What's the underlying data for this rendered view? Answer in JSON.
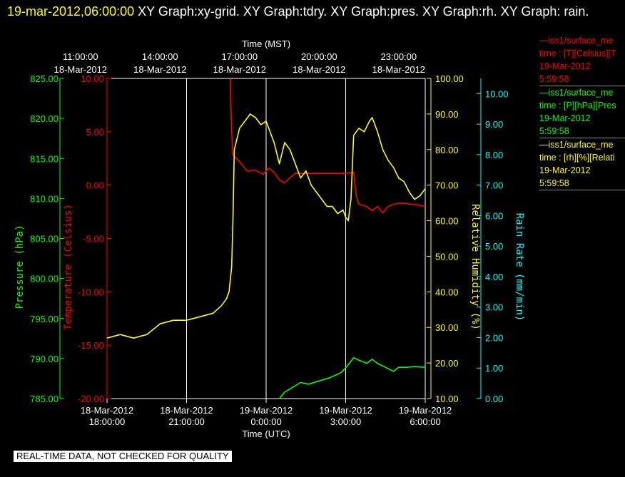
{
  "header": {
    "timestamp": "19-mar-2012,06:00:00",
    "title": "XY Graph:xy-grid.  XY Graph:tdry.  XY Graph:pres.  XY Graph:rh.  XY Graph: rain."
  },
  "legend": [
    {
      "line1": "—iss1/surface_me",
      "line2": "time : [T][Celsius][T",
      "line3": "19-Mar-2012",
      "line4": "5:59:58",
      "color": "#ff0000"
    },
    {
      "line1": "—iss1/surface_me",
      "line2": "time : [P][hPa][Pres",
      "line3": "19-Mar-2012",
      "line4": "5:59:58",
      "color": "#00ff00"
    },
    {
      "line1": "—iss1/surface_me",
      "line2": "time : [rh][%][Relati",
      "line3": "19-Mar-2012",
      "line4": "5:59:58",
      "color": "#ffff00"
    }
  ],
  "notice": "REAL-TIME DATA, NOT CHECKED FOR QUALITY",
  "chart_data": {
    "type": "line",
    "x_axis_bottom": {
      "label": "Time (UTC)",
      "ticks": [
        {
          "date": "18-Mar-2012",
          "time": "18:00:00"
        },
        {
          "date": "18-Mar-2012",
          "time": "21:00:00"
        },
        {
          "date": "19-Mar-2012",
          "time": "0:00:00"
        },
        {
          "date": "19-Mar-2012",
          "time": "3:00:00"
        },
        {
          "date": "19-Mar-2012",
          "time": "6:00:00"
        }
      ]
    },
    "x_axis_top": {
      "label": "Time (MST)",
      "ticks": [
        {
          "time": "11:00:00",
          "date": "18-Mar-2012"
        },
        {
          "time": "14:00:00",
          "date": "18-Mar-2012"
        },
        {
          "time": "17:00:00",
          "date": "18-Mar-2012"
        },
        {
          "time": "20:00:00",
          "date": "18-Mar-2012"
        },
        {
          "time": "23:00:00",
          "date": "18-Mar-2012"
        }
      ]
    },
    "xlim_hours_utc": [
      18,
      30
    ],
    "axes": {
      "pressure": {
        "label": "Pressure (hPa)",
        "color": "#00ff00",
        "ylim": [
          785,
          825
        ],
        "ticks": [
          "785.00",
          "790.00",
          "795.00",
          "800.00",
          "805.00",
          "810.00",
          "815.00",
          "820.00",
          "825.00"
        ]
      },
      "temperature": {
        "label": "Temperature (Celsius)",
        "color": "#ff0000",
        "ylim": [
          -20,
          10
        ],
        "ticks": [
          "-20.00",
          "-15.00",
          "-10.00",
          "-5.00",
          "0.00",
          "5.00",
          "10.00"
        ]
      },
      "rh": {
        "label": "Relative Humidity (%)",
        "color": "#ffff00",
        "ylim": [
          10,
          100
        ],
        "ticks": [
          "10.00",
          "20.00",
          "30.00",
          "40.00",
          "50.00",
          "60.00",
          "70.00",
          "80.00",
          "90.00",
          "100.00"
        ]
      },
      "rain": {
        "label": "Rain Rate (mm/min)",
        "color": "#00ffff",
        "ylim": [
          0,
          10.5
        ],
        "ticks": [
          "0.00",
          "1.00",
          "2.00",
          "3.00",
          "4.00",
          "5.00",
          "6.00",
          "7.00",
          "8.00",
          "9.00",
          "10.00"
        ]
      }
    },
    "grid": true,
    "series": [
      {
        "axis": "temperature",
        "color": "#ff0000",
        "x": [
          22.65,
          22.7,
          22.75,
          22.8,
          23.0,
          23.3,
          23.6,
          23.9,
          24.1,
          24.3,
          24.5,
          24.7,
          24.9,
          25.1,
          25.3,
          25.6,
          26.0,
          26.5,
          27.0,
          27.3,
          27.4,
          27.5,
          27.8,
          28.0,
          28.2,
          28.4,
          28.6,
          28.8,
          29.0,
          29.2,
          29.5,
          29.8,
          30.0
        ],
        "y": [
          10,
          5.0,
          2.8,
          2.7,
          2.2,
          1.3,
          1.4,
          1.0,
          1.6,
          1.2,
          0.5,
          0.2,
          0.7,
          1.1,
          1.1,
          1.1,
          1.1,
          1.1,
          1.1,
          1.2,
          -1.0,
          -1.8,
          -2.0,
          -2.4,
          -2.0,
          -2.6,
          -2.0,
          -1.8,
          -1.7,
          -1.7,
          -1.8,
          -1.9,
          -2.0
        ]
      },
      {
        "axis": "rh",
        "color": "#ffff00",
        "x": [
          18.0,
          18.5,
          19.0,
          19.5,
          20.0,
          20.5,
          21.0,
          21.5,
          22.0,
          22.3,
          22.5,
          22.6,
          22.7,
          22.75,
          22.8,
          23.0,
          23.2,
          23.4,
          23.6,
          23.8,
          24.0,
          24.1,
          24.3,
          24.5,
          24.7,
          24.9,
          25.1,
          25.3,
          25.5,
          25.7,
          25.9,
          26.1,
          26.3,
          26.5,
          26.7,
          26.9,
          27.0,
          27.1,
          27.2,
          27.3,
          27.5,
          27.7,
          27.9,
          28.0,
          28.2,
          28.4,
          28.6,
          28.8,
          29.0,
          29.2,
          29.4,
          29.6,
          29.8,
          30.0
        ],
        "y": [
          27,
          28,
          27,
          28,
          31,
          32,
          32,
          33,
          34,
          36,
          38,
          40,
          47,
          60,
          80,
          86,
          88,
          90,
          89,
          87,
          88,
          86,
          82,
          76,
          82,
          80,
          76,
          72,
          74,
          70,
          68,
          66,
          64,
          64,
          62,
          63,
          61,
          60,
          66,
          84,
          86,
          85,
          88,
          89,
          85,
          80,
          77,
          75,
          72,
          71,
          68,
          66,
          67,
          69
        ]
      },
      {
        "axis": "pressure",
        "color": "#00ff00",
        "x": [
          24.5,
          24.7,
          25.0,
          25.3,
          25.6,
          26.0,
          26.4,
          26.8,
          27.0,
          27.3,
          27.5,
          27.8,
          28.0,
          28.2,
          28.5,
          28.8,
          29.0,
          29.3,
          29.6,
          30.0
        ],
        "y": [
          785.0,
          785.8,
          786.4,
          787.0,
          786.8,
          787.2,
          787.6,
          788.2,
          788.8,
          790.1,
          789.8,
          789.4,
          789.9,
          789.4,
          788.9,
          788.4,
          788.9,
          788.9,
          789.0,
          788.9
        ]
      }
    ]
  }
}
